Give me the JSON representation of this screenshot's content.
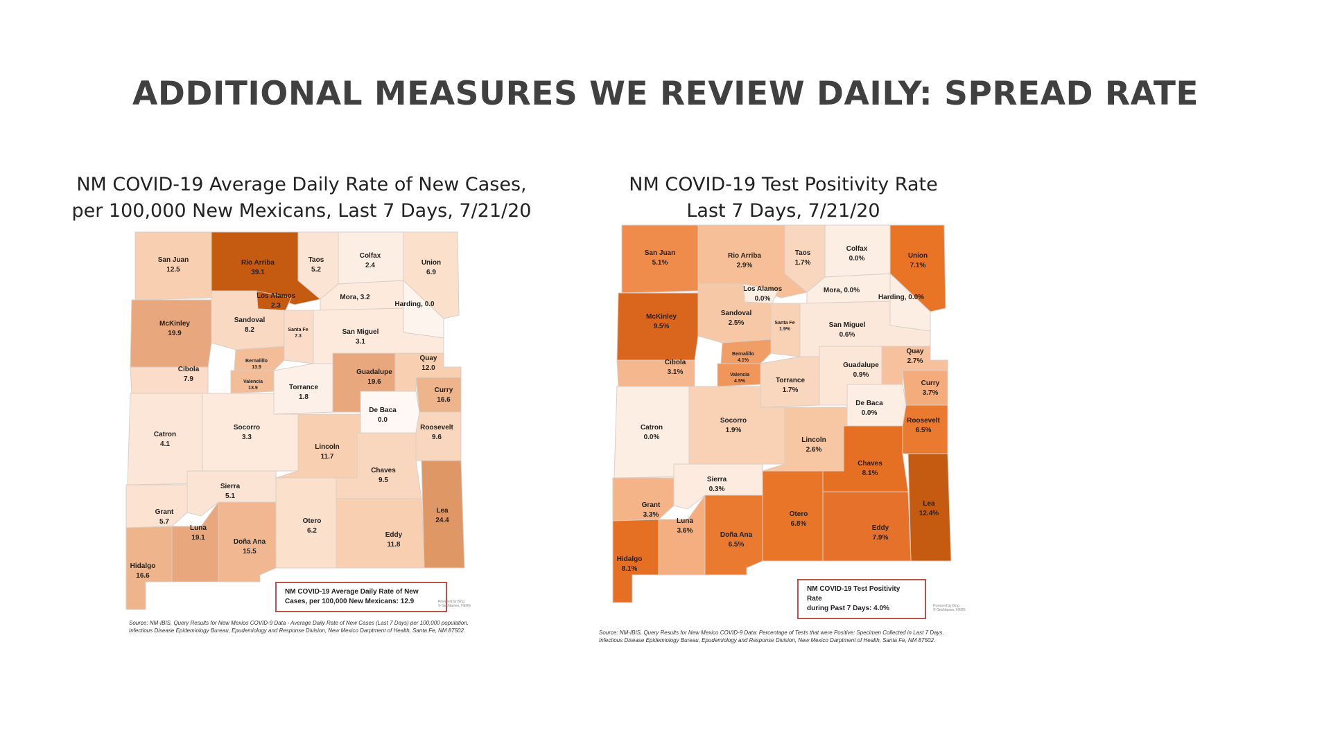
{
  "slide": {
    "title": "ADDITIONAL MEASURES WE REVIEW DAILY: SPREAD RATE"
  },
  "map1": {
    "title_line1": "NM COVID-19 Average Daily Rate of New Cases,",
    "title_line2": "per 100,000 New Mexicans, Last 7 Days, 7/21/20",
    "legend_line1": "NM COVID-19 Average Daily Rate of New",
    "legend_line2": "Cases, per 100,000 New Mexicans: 12.9",
    "powered": [
      "Powered by Bing",
      "© GeoNames, HERE"
    ],
    "source": "Source: NM-IBIS, Query Results for New Mexico COVID-9 Data - Average Daily Rate of New Cases (Last 7 Days) per 100,000 population. Infectious Disease Epidemiology Bureau, Epudemiology and Response Division, New Mexico Darptment of Health, Santa Fe, NM 87502.",
    "counties": {
      "san_juan": {
        "name": "San Juan",
        "value": "12.5",
        "color": "#f8cfb0"
      },
      "rio_arriba": {
        "name": "Rio Arriba",
        "value": "39.1",
        "color": "#c55a11"
      },
      "taos": {
        "name": "Taos",
        "value": "5.2",
        "color": "#fce4d4"
      },
      "colfax": {
        "name": "Colfax",
        "value": "2.4",
        "color": "#fdeee4"
      },
      "union": {
        "name": "Union",
        "value": "6.9",
        "color": "#fbe0cc"
      },
      "los_alamos": {
        "name": "Los Alamos",
        "value": "2.3",
        "color": "#c55a11"
      },
      "mora": {
        "name": "Mora, 3.2",
        "value": "",
        "color": "#fdeadc"
      },
      "harding": {
        "name": "Harding, 0.0",
        "value": "",
        "color": "#fef4ee"
      },
      "mckinley": {
        "name": "McKinley",
        "value": "19.9",
        "color": "#e8a77c"
      },
      "sandoval": {
        "name": "Sandoval",
        "value": "8.2",
        "color": "#f9d9c2"
      },
      "santa_fe": {
        "name": "Santa Fe",
        "value": "7.3",
        "color": "#fbdcc8"
      },
      "san_miguel": {
        "name": "San Miguel",
        "value": "3.1",
        "color": "#fdeadc"
      },
      "bernalillo": {
        "name": "Bernalillo",
        "value": "13.9",
        "color": "#f3bd97"
      },
      "valencia": {
        "name": "Valencia",
        "value": "13.9",
        "color": "#f3bd97"
      },
      "cibola": {
        "name": "Cibola",
        "value": "7.9",
        "color": "#fbdcc8"
      },
      "guadalupe": {
        "name": "Guadalupe",
        "value": "19.6",
        "color": "#e8a77c"
      },
      "quay": {
        "name": "Quay",
        "value": "12.0",
        "color": "#f8cfb0"
      },
      "torrance": {
        "name": "Torrance",
        "value": "1.8",
        "color": "#fdf0e8"
      },
      "curry": {
        "name": "Curry",
        "value": "16.6",
        "color": "#eeb48c"
      },
      "de_baca": {
        "name": "De Baca",
        "value": "0.0",
        "color": "#fff8f4"
      },
      "catron": {
        "name": "Catron",
        "value": "4.1",
        "color": "#fce6d8"
      },
      "socorro": {
        "name": "Socorro",
        "value": "3.3",
        "color": "#fdeadc"
      },
      "lincoln": {
        "name": "Lincoln",
        "value": "11.7",
        "color": "#f8cfb0"
      },
      "roosevelt": {
        "name": "Roosevelt",
        "value": "9.6",
        "color": "#f9d6be"
      },
      "chaves": {
        "name": "Chaves",
        "value": "9.5",
        "color": "#f9d6be"
      },
      "sierra": {
        "name": "Sierra",
        "value": "5.1",
        "color": "#fce4d4"
      },
      "grant": {
        "name": "Grant",
        "value": "5.7",
        "color": "#fce2d0"
      },
      "lea": {
        "name": "Lea",
        "value": "24.4",
        "color": "#df9865"
      },
      "otero": {
        "name": "Otero",
        "value": "6.2",
        "color": "#fbe0cc"
      },
      "luna": {
        "name": "Luna",
        "value": "19.1",
        "color": "#e8a77c"
      },
      "dona_ana": {
        "name": "Doña Ana",
        "value": "15.5",
        "color": "#f0b790"
      },
      "eddy": {
        "name": "Eddy",
        "value": "11.8",
        "color": "#f8cfb0"
      },
      "hidalgo": {
        "name": "Hidalgo",
        "value": "16.6",
        "color": "#eeb48c"
      }
    }
  },
  "map2": {
    "title_line1": "NM COVID-19 Test Positivity Rate",
    "title_line2": "Last 7 Days, 7/21/20",
    "legend_line1": "NM COVID-19 Test Positivity  Rate",
    "legend_line2": "during Past 7 Days: 4.0%",
    "powered": [
      "Powered by Bing",
      "© GeoNames, HERE"
    ],
    "source": "Source: NM-IBIS, Query Results for New Mexico COVID-9 Data: Percentage of Tests that were Positive: Specimen Collected in Last 7 Days. Infectious Disease Epidemiology Bureau, Epudemiology and Response Division, New Mexico Darptment of Health, Santa Fe, NM 87502.",
    "counties": {
      "san_juan": {
        "name": "San Juan",
        "value": "5.1%",
        "color": "#ef8c4c"
      },
      "rio_arriba": {
        "name": "Rio Arriba",
        "value": "2.9%",
        "color": "#f6bf98"
      },
      "taos": {
        "name": "Taos",
        "value": "1.7%",
        "color": "#f9d6be"
      },
      "colfax": {
        "name": "Colfax",
        "value": "0.0%",
        "color": "#fdeee4"
      },
      "union": {
        "name": "Union",
        "value": "7.1%",
        "color": "#e97426"
      },
      "los_alamos": {
        "name": "Los Alamos",
        "value": "0.0%",
        "color": "#fdeee4"
      },
      "mora": {
        "name": "Mora, 0.0%",
        "value": "",
        "color": "#fdeee4"
      },
      "harding": {
        "name": "Harding, 0.0%",
        "value": "",
        "color": "#fdeee4"
      },
      "mckinley": {
        "name": "McKinley",
        "value": "9.5%",
        "color": "#d9661c"
      },
      "sandoval": {
        "name": "Sandoval",
        "value": "2.5%",
        "color": "#f7c8a6"
      },
      "santa_fe": {
        "name": "Santa Fe",
        "value": "1.9%",
        "color": "#f9d2b6"
      },
      "san_miguel": {
        "name": "San Miguel",
        "value": "0.6%",
        "color": "#fce8da"
      },
      "bernalillo": {
        "name": "Bernalillo",
        "value": "4.1%",
        "color": "#f19d66"
      },
      "valencia": {
        "name": "Valencia",
        "value": "4.5%",
        "color": "#f0965a"
      },
      "cibola": {
        "name": "Cibola",
        "value": "3.1%",
        "color": "#f5b88e"
      },
      "guadalupe": {
        "name": "Guadalupe",
        "value": "0.9%",
        "color": "#fce6d6"
      },
      "quay": {
        "name": "Quay",
        "value": "2.7%",
        "color": "#f6c19c"
      },
      "torrance": {
        "name": "Torrance",
        "value": "1.7%",
        "color": "#f9d6be"
      },
      "curry": {
        "name": "Curry",
        "value": "3.7%",
        "color": "#f4ac7c"
      },
      "de_baca": {
        "name": "De Baca",
        "value": "0.0%",
        "color": "#fdeee4"
      },
      "catron": {
        "name": "Catron",
        "value": "0.0%",
        "color": "#fdeee4"
      },
      "socorro": {
        "name": "Socorro",
        "value": "1.9%",
        "color": "#f9d2b6"
      },
      "lincoln": {
        "name": "Lincoln",
        "value": "2.6%",
        "color": "#f7c6a2"
      },
      "roosevelt": {
        "name": "Roosevelt",
        "value": "6.5%",
        "color": "#ea7a30"
      },
      "chaves": {
        "name": "Chaves",
        "value": "8.1%",
        "color": "#e56f22"
      },
      "sierra": {
        "name": "Sierra",
        "value": "0.3%",
        "color": "#fdebe0"
      },
      "grant": {
        "name": "Grant",
        "value": "3.3%",
        "color": "#f5b488"
      },
      "lea": {
        "name": "Lea",
        "value": "12.4%",
        "color": "#c55a11"
      },
      "otero": {
        "name": "Otero",
        "value": "6.8%",
        "color": "#e97628"
      },
      "luna": {
        "name": "Luna",
        "value": "3.6%",
        "color": "#f4ae80"
      },
      "dona_ana": {
        "name": "Doña Ana",
        "value": "6.5%",
        "color": "#ea7a30"
      },
      "eddy": {
        "name": "Eddy",
        "value": "7.9%",
        "color": "#e6712a"
      },
      "hidalgo": {
        "name": "Hidalgo",
        "value": "8.1%",
        "color": "#e56f22"
      }
    }
  }
}
